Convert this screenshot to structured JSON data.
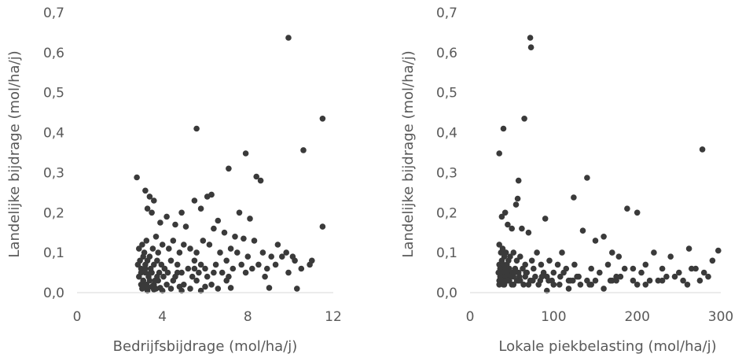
{
  "chart_data": [
    {
      "type": "scatter",
      "title": "",
      "xlabel": "Bedrijfsbijdrage (mol/ha/j)",
      "ylabel": "Landelijke bijdrage (mol/ha/j)",
      "xlim": [
        0,
        12
      ],
      "ylim": [
        0,
        0.7
      ],
      "xticks": [
        "0",
        "4",
        "8",
        "12"
      ],
      "yticks": [
        "0,0",
        "0,1",
        "0,2",
        "0,3",
        "0,4",
        "0,5",
        "0,6",
        "0,7"
      ],
      "grid": false,
      "color": "#3a3a3a",
      "x": [
        9.9,
        11.5,
        5.6,
        10.6,
        7.9,
        7.1,
        8.4,
        8.6,
        2.8,
        6.1,
        6.3,
        5.5,
        5.8,
        4.9,
        7.6,
        8.1,
        6.6,
        3.2,
        3.4,
        3.3,
        3.6,
        3.5,
        4.2,
        3.9,
        4.6,
        5.1,
        6.4,
        6.9,
        7.4,
        7.8,
        8.3,
        9.4,
        9.8,
        10.1,
        11.0,
        11.5,
        2.9,
        3.05,
        3.15,
        3.25,
        3.4,
        3.55,
        3.7,
        3.8,
        4.0,
        4.3,
        4.5,
        4.8,
        5.0,
        5.3,
        5.6,
        5.9,
        6.2,
        6.7,
        7.2,
        7.5,
        8.0,
        8.7,
        9.1,
        9.6,
        10.2,
        10.9,
        2.85,
        2.95,
        3.0,
        3.1,
        3.2,
        3.3,
        3.45,
        3.6,
        3.75,
        3.95,
        4.1,
        4.4,
        4.7,
        5.2,
        5.5,
        5.8,
        6.0,
        6.5,
        7.0,
        7.3,
        7.7,
        8.2,
        8.5,
        8.9,
        9.3,
        10.5,
        2.9,
        3.0,
        3.1,
        3.2,
        3.35,
        3.5,
        3.65,
        3.85,
        4.05,
        4.25,
        4.6,
        4.9,
        5.4,
        5.7,
        6.1,
        6.8,
        7.1,
        7.9,
        8.8,
        9.9,
        3.0,
        3.1,
        3.25,
        3.4,
        3.6,
        3.8,
        4.2,
        4.5,
        5.0,
        5.6,
        6.3,
        7.0,
        3.05,
        3.15,
        3.3,
        3.5,
        3.7,
        3.9,
        4.4,
        4.8,
        5.3,
        6.0,
        3.2,
        3.45,
        3.75,
        4.1,
        4.7,
        5.5,
        6.4,
        5.8,
        9.0,
        10.3,
        7.2,
        4.0,
        3.3,
        3.6,
        4.9,
        6.6
      ],
      "y": [
        0.637,
        0.435,
        0.41,
        0.356,
        0.348,
        0.31,
        0.29,
        0.28,
        0.288,
        0.24,
        0.245,
        0.23,
        0.21,
        0.2,
        0.2,
        0.185,
        0.18,
        0.255,
        0.24,
        0.21,
        0.23,
        0.2,
        0.19,
        0.175,
        0.17,
        0.165,
        0.16,
        0.15,
        0.14,
        0.135,
        0.13,
        0.12,
        0.1,
        0.09,
        0.08,
        0.165,
        0.11,
        0.12,
        0.1,
        0.13,
        0.09,
        0.11,
        0.14,
        0.1,
        0.12,
        0.11,
        0.13,
        0.1,
        0.12,
        0.11,
        0.1,
        0.13,
        0.12,
        0.1,
        0.11,
        0.1,
        0.09,
        0.1,
        0.09,
        0.09,
        0.08,
        0.07,
        0.07,
        0.08,
        0.06,
        0.09,
        0.07,
        0.08,
        0.06,
        0.07,
        0.08,
        0.07,
        0.06,
        0.08,
        0.07,
        0.06,
        0.08,
        0.07,
        0.06,
        0.07,
        0.08,
        0.06,
        0.07,
        0.06,
        0.07,
        0.06,
        0.07,
        0.06,
        0.04,
        0.05,
        0.03,
        0.05,
        0.04,
        0.05,
        0.03,
        0.05,
        0.04,
        0.05,
        0.04,
        0.05,
        0.04,
        0.05,
        0.04,
        0.05,
        0.04,
        0.05,
        0.04,
        0.05,
        0.02,
        0.03,
        0.02,
        0.03,
        0.02,
        0.03,
        0.02,
        0.03,
        0.02,
        0.03,
        0.02,
        0.03,
        0.01,
        0.015,
        0.01,
        0.015,
        0.01,
        0.012,
        0.01,
        0.015,
        0.01,
        0.015,
        0.06,
        0.05,
        0.04,
        0.06,
        0.05,
        0.06,
        0.05,
        0.005,
        0.012,
        0.01,
        0.012,
        0.005,
        0.005,
        0.008,
        0.005,
        0.01
      ]
    },
    {
      "type": "scatter",
      "title": "",
      "xlabel": "Lokale piekbelasting (mol/ha/j)",
      "ylabel": "Landelijke bijdrage (mol/ha/j)",
      "xlim": [
        0,
        300
      ],
      "ylim": [
        0,
        0.7
      ],
      "xticks": [
        "0",
        "100",
        "200",
        "300"
      ],
      "yticks": [
        "0,0",
        "0,1",
        "0,2",
        "0,3",
        "0,4",
        "0,5",
        "0,6",
        "0,7"
      ],
      "grid": false,
      "color": "#3a3a3a",
      "x": [
        72,
        73,
        40,
        35,
        65,
        278,
        140,
        58,
        124,
        90,
        57,
        55,
        200,
        188,
        38,
        42,
        45,
        50,
        62,
        70,
        80,
        110,
        135,
        150,
        160,
        170,
        178,
        220,
        240,
        262,
        290,
        297,
        35,
        37,
        39,
        41,
        43,
        46,
        48,
        52,
        56,
        60,
        66,
        74,
        85,
        95,
        105,
        115,
        125,
        145,
        165,
        185,
        195,
        210,
        230,
        250,
        270,
        280,
        35,
        36,
        38,
        40,
        42,
        44,
        47,
        50,
        54,
        58,
        63,
        68,
        76,
        88,
        100,
        112,
        130,
        155,
        175,
        205,
        235,
        265,
        34,
        36,
        38,
        41,
        44,
        48,
        53,
        59,
        67,
        78,
        92,
        108,
        128,
        150,
        180,
        215,
        245,
        275,
        35,
        37,
        40,
        43,
        47,
        52,
        58,
        66,
        75,
        86,
        98,
        118,
        140,
        168,
        195,
        225,
        255,
        285,
        35,
        38,
        41,
        45,
        50,
        56,
        64,
        72,
        82,
        94,
        107,
        123,
        143,
        170,
        200,
        230,
        260,
        36,
        40,
        45,
        52,
        60,
        70,
        84,
        100,
        120,
        145,
        175,
        210,
        92,
        100,
        118,
        132,
        160
      ],
      "y": [
        0.637,
        0.613,
        0.41,
        0.348,
        0.435,
        0.358,
        0.287,
        0.28,
        0.238,
        0.185,
        0.235,
        0.22,
        0.2,
        0.21,
        0.19,
        0.2,
        0.17,
        0.16,
        0.16,
        0.15,
        0.1,
        0.1,
        0.155,
        0.13,
        0.14,
        0.1,
        0.09,
        0.1,
        0.09,
        0.11,
        0.08,
        0.105,
        0.12,
        0.1,
        0.11,
        0.09,
        0.1,
        0.08,
        0.09,
        0.1,
        0.08,
        0.09,
        0.07,
        0.08,
        0.07,
        0.08,
        0.07,
        0.06,
        0.07,
        0.06,
        0.07,
        0.06,
        0.06,
        0.07,
        0.06,
        0.05,
        0.06,
        0.05,
        0.07,
        0.06,
        0.08,
        0.07,
        0.06,
        0.07,
        0.06,
        0.05,
        0.06,
        0.05,
        0.06,
        0.05,
        0.06,
        0.05,
        0.05,
        0.05,
        0.04,
        0.05,
        0.04,
        0.05,
        0.04,
        0.06,
        0.05,
        0.04,
        0.05,
        0.04,
        0.05,
        0.04,
        0.05,
        0.04,
        0.05,
        0.04,
        0.04,
        0.04,
        0.04,
        0.03,
        0.04,
        0.03,
        0.04,
        0.03,
        0.03,
        0.04,
        0.03,
        0.04,
        0.03,
        0.04,
        0.03,
        0.04,
        0.03,
        0.04,
        0.03,
        0.03,
        0.03,
        0.03,
        0.03,
        0.03,
        0.03,
        0.04,
        0.02,
        0.03,
        0.02,
        0.03,
        0.02,
        0.03,
        0.02,
        0.03,
        0.02,
        0.03,
        0.02,
        0.03,
        0.02,
        0.03,
        0.02,
        0.03,
        0.02,
        0.03,
        0.02,
        0.03,
        0.02,
        0.03,
        0.02,
        0.03,
        0.02,
        0.03,
        0.02,
        0.03,
        0.02,
        0.005,
        0.02,
        0.01,
        0.02,
        0.01
      ]
    }
  ]
}
